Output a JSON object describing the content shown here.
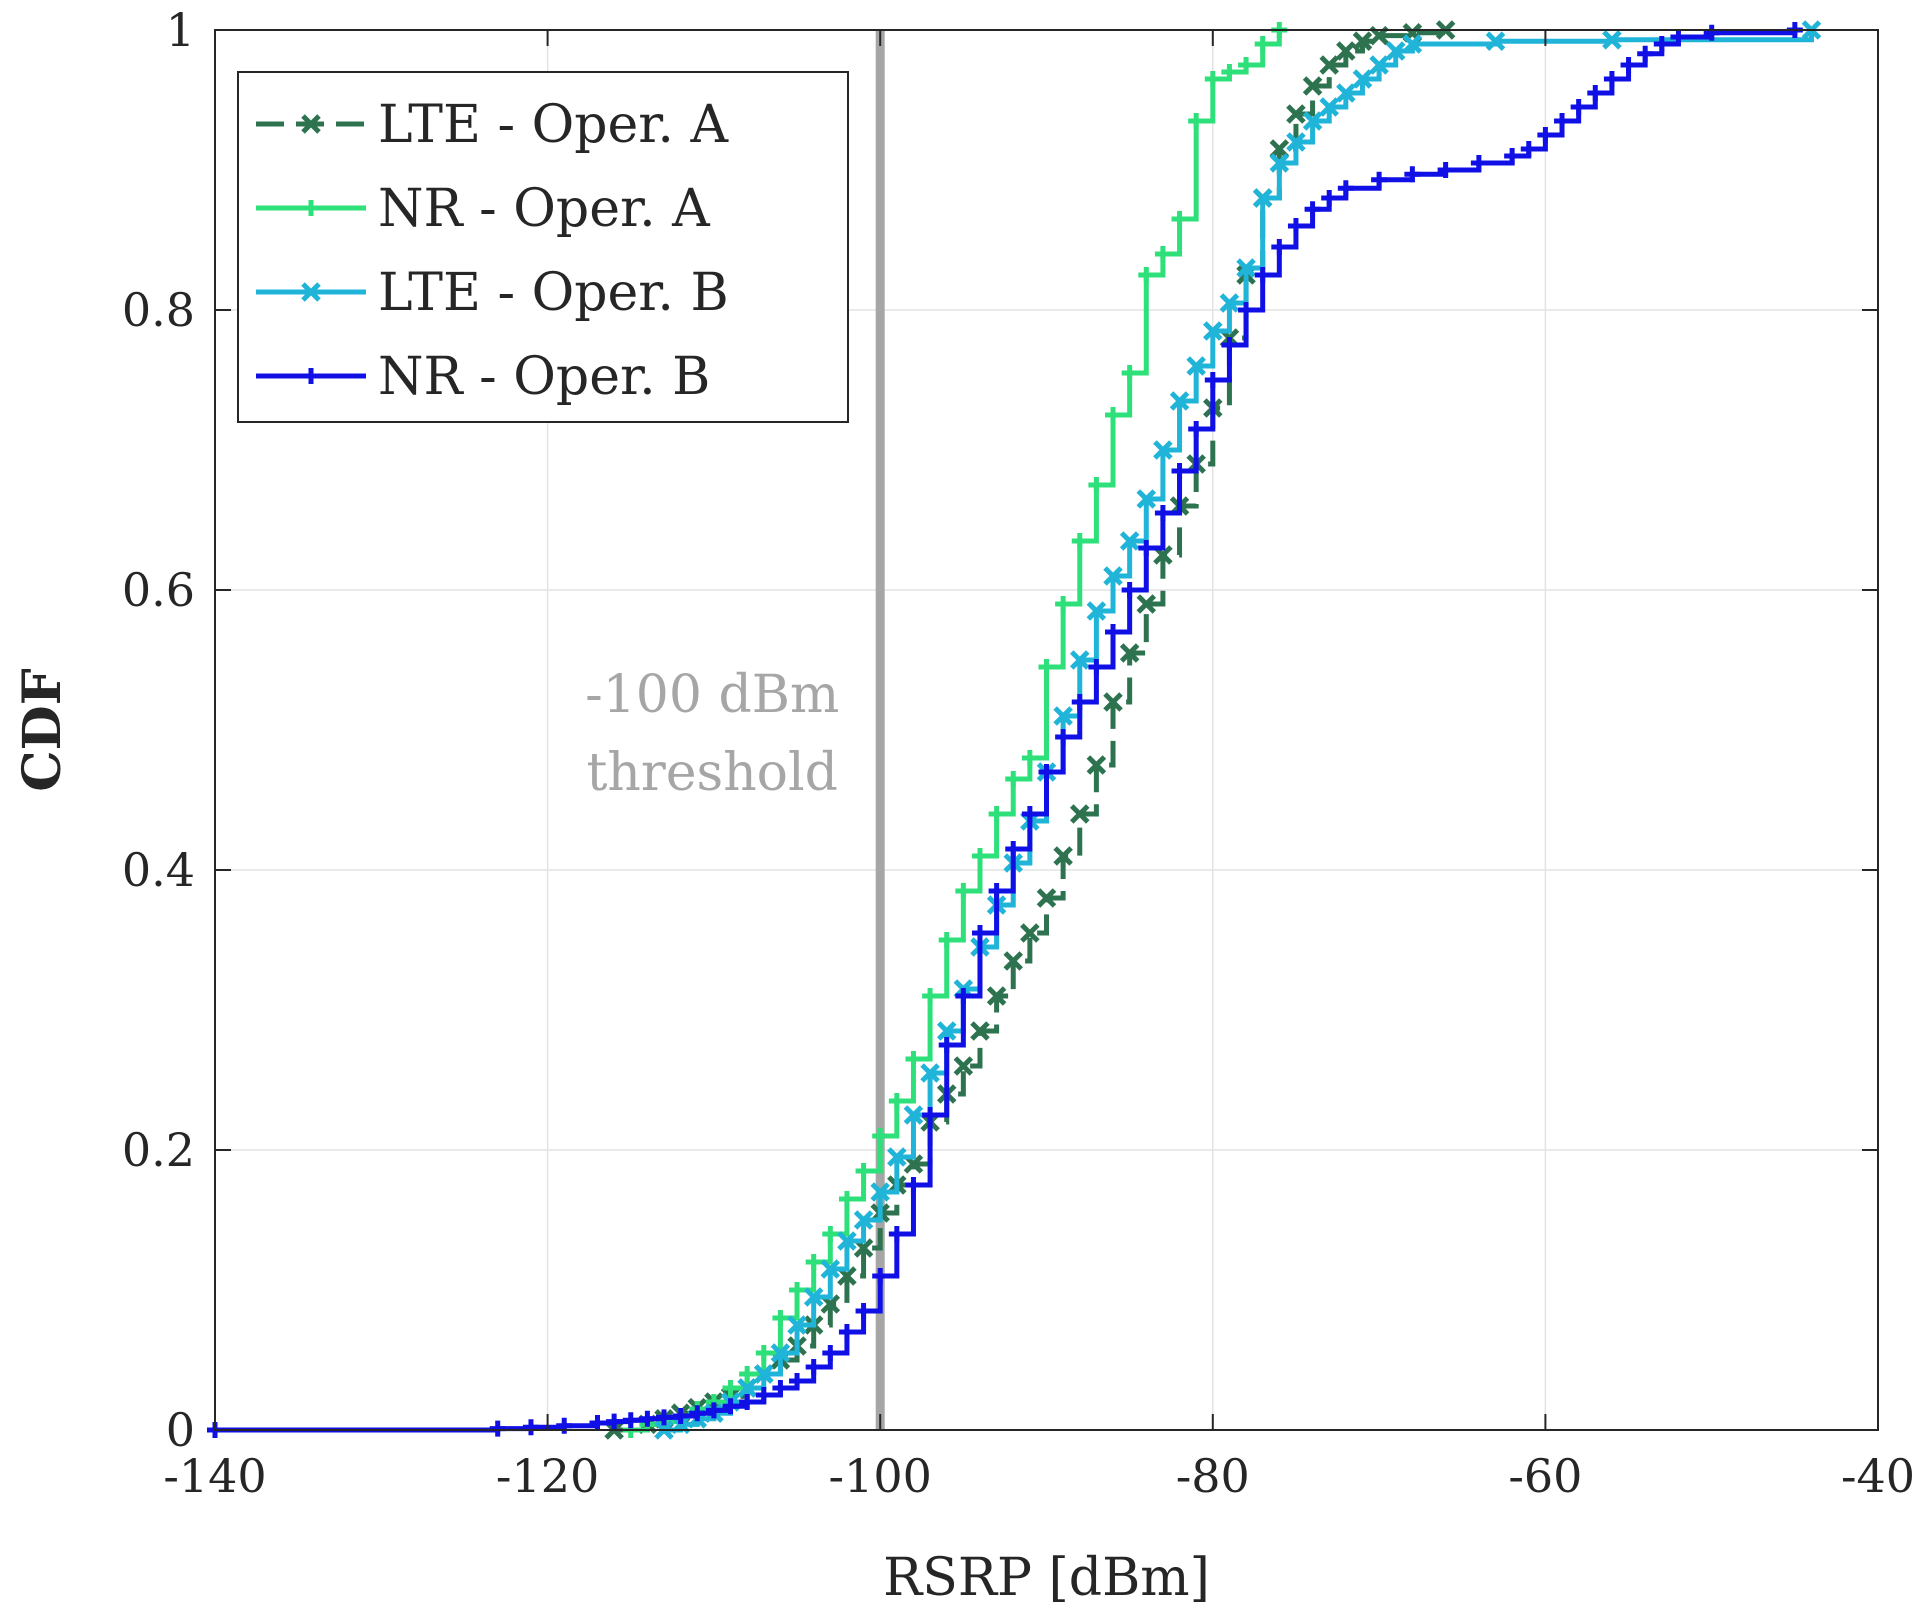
{
  "chart_data": {
    "type": "line",
    "subtype": "empirical-cdf-step",
    "xlabel": "RSRP [dBm]",
    "ylabel": "CDF",
    "xlim": [
      -140,
      -40
    ],
    "ylim": [
      0,
      1
    ],
    "xticks": [
      -140,
      -120,
      -100,
      -80,
      -60,
      -40
    ],
    "yticks": [
      0,
      0.2,
      0.4,
      0.6,
      0.8,
      1
    ],
    "xtick_labels": [
      "-140",
      "-120",
      "-100",
      "-80",
      "-60",
      "-40"
    ],
    "ytick_labels": [
      "0",
      "0.2",
      "0.4",
      "0.6",
      "0.8",
      "1"
    ],
    "grid": true,
    "legend_position": "top-left",
    "threshold": {
      "x": -100,
      "color": "#a6a6a6",
      "label_line1": "-100 dBm",
      "label_line2": "threshold"
    },
    "series": [
      {
        "name": "LTE - Oper. A",
        "color": "#2e7350",
        "dash": true,
        "marker": "x",
        "points": [
          [
            -116,
            0.0
          ],
          [
            -114,
            0.004
          ],
          [
            -113,
            0.008
          ],
          [
            -112,
            0.012
          ],
          [
            -111,
            0.016
          ],
          [
            -110,
            0.02
          ],
          [
            -109,
            0.024
          ],
          [
            -108,
            0.03
          ],
          [
            -107,
            0.04
          ],
          [
            -106,
            0.05
          ],
          [
            -105,
            0.06
          ],
          [
            -104,
            0.075
          ],
          [
            -103,
            0.09
          ],
          [
            -102,
            0.11
          ],
          [
            -101,
            0.13
          ],
          [
            -100,
            0.155
          ],
          [
            -99,
            0.175
          ],
          [
            -98,
            0.19
          ],
          [
            -97,
            0.22
          ],
          [
            -96,
            0.24
          ],
          [
            -95,
            0.26
          ],
          [
            -94,
            0.285
          ],
          [
            -93,
            0.31
          ],
          [
            -92,
            0.335
          ],
          [
            -91,
            0.355
          ],
          [
            -90,
            0.38
          ],
          [
            -89,
            0.41
          ],
          [
            -88,
            0.44
          ],
          [
            -87,
            0.475
          ],
          [
            -86,
            0.52
          ],
          [
            -85,
            0.555
          ],
          [
            -84,
            0.59
          ],
          [
            -83,
            0.625
          ],
          [
            -82,
            0.66
          ],
          [
            -81,
            0.69
          ],
          [
            -80,
            0.73
          ],
          [
            -79,
            0.78
          ],
          [
            -78,
            0.825
          ],
          [
            -77,
            0.88
          ],
          [
            -76,
            0.915
          ],
          [
            -75,
            0.94
          ],
          [
            -74,
            0.96
          ],
          [
            -73,
            0.975
          ],
          [
            -72,
            0.985
          ],
          [
            -71,
            0.992
          ],
          [
            -70,
            0.996
          ],
          [
            -68,
            0.998
          ],
          [
            -66,
            1.0
          ]
        ]
      },
      {
        "name": "NR - Oper. A",
        "color": "#2ee07a",
        "dash": false,
        "marker": "+",
        "points": [
          [
            -115,
            0.0
          ],
          [
            -114,
            0.004
          ],
          [
            -113,
            0.006
          ],
          [
            -112,
            0.01
          ],
          [
            -111,
            0.015
          ],
          [
            -110,
            0.02
          ],
          [
            -109,
            0.03
          ],
          [
            -108,
            0.04
          ],
          [
            -107,
            0.055
          ],
          [
            -106,
            0.08
          ],
          [
            -105,
            0.1
          ],
          [
            -104,
            0.12
          ],
          [
            -103,
            0.14
          ],
          [
            -102,
            0.165
          ],
          [
            -101,
            0.185
          ],
          [
            -100,
            0.21
          ],
          [
            -99,
            0.235
          ],
          [
            -98,
            0.265
          ],
          [
            -97,
            0.31
          ],
          [
            -96,
            0.35
          ],
          [
            -95,
            0.385
          ],
          [
            -94,
            0.41
          ],
          [
            -93,
            0.44
          ],
          [
            -92,
            0.465
          ],
          [
            -91,
            0.48
          ],
          [
            -90,
            0.545
          ],
          [
            -89,
            0.59
          ],
          [
            -88,
            0.635
          ],
          [
            -87,
            0.675
          ],
          [
            -86,
            0.725
          ],
          [
            -85,
            0.755
          ],
          [
            -84,
            0.825
          ],
          [
            -83,
            0.84
          ],
          [
            -82,
            0.865
          ],
          [
            -81,
            0.935
          ],
          [
            -80,
            0.965
          ],
          [
            -79,
            0.97
          ],
          [
            -78,
            0.975
          ],
          [
            -77,
            0.99
          ],
          [
            -76,
            1.0
          ]
        ]
      },
      {
        "name": "LTE - Oper. B",
        "color": "#1fb4d8",
        "dash": false,
        "marker": "x",
        "points": [
          [
            -113,
            0.0
          ],
          [
            -112,
            0.004
          ],
          [
            -111,
            0.008
          ],
          [
            -110,
            0.012
          ],
          [
            -109,
            0.02
          ],
          [
            -108,
            0.03
          ],
          [
            -107,
            0.04
          ],
          [
            -106,
            0.055
          ],
          [
            -105,
            0.075
          ],
          [
            -104,
            0.095
          ],
          [
            -103,
            0.115
          ],
          [
            -102,
            0.135
          ],
          [
            -101,
            0.15
          ],
          [
            -100,
            0.17
          ],
          [
            -99,
            0.195
          ],
          [
            -98,
            0.225
          ],
          [
            -97,
            0.255
          ],
          [
            -96,
            0.285
          ],
          [
            -95,
            0.315
          ],
          [
            -94,
            0.345
          ],
          [
            -93,
            0.375
          ],
          [
            -92,
            0.405
          ],
          [
            -91,
            0.435
          ],
          [
            -90,
            0.47
          ],
          [
            -89,
            0.51
          ],
          [
            -88,
            0.55
          ],
          [
            -87,
            0.585
          ],
          [
            -86,
            0.61
          ],
          [
            -85,
            0.635
          ],
          [
            -84,
            0.665
          ],
          [
            -83,
            0.7
          ],
          [
            -82,
            0.735
          ],
          [
            -81,
            0.76
          ],
          [
            -80,
            0.785
          ],
          [
            -79,
            0.805
          ],
          [
            -78,
            0.83
          ],
          [
            -77,
            0.88
          ],
          [
            -76,
            0.905
          ],
          [
            -75,
            0.92
          ],
          [
            -74,
            0.935
          ],
          [
            -73,
            0.945
          ],
          [
            -72,
            0.955
          ],
          [
            -71,
            0.965
          ],
          [
            -70,
            0.975
          ],
          [
            -69,
            0.985
          ],
          [
            -68,
            0.99
          ],
          [
            -63,
            0.992
          ],
          [
            -56,
            0.993
          ],
          [
            -44,
            1.0
          ]
        ]
      },
      {
        "name": "NR - Oper. B",
        "color": "#1010e6",
        "dash": false,
        "marker": "+",
        "points": [
          [
            -140,
            0.0
          ],
          [
            -123,
            0.001
          ],
          [
            -121,
            0.002
          ],
          [
            -119,
            0.003
          ],
          [
            -117,
            0.005
          ],
          [
            -116,
            0.006
          ],
          [
            -115,
            0.007
          ],
          [
            -114,
            0.008
          ],
          [
            -113,
            0.009
          ],
          [
            -112,
            0.01
          ],
          [
            -111,
            0.012
          ],
          [
            -110,
            0.014
          ],
          [
            -109,
            0.017
          ],
          [
            -108,
            0.02
          ],
          [
            -107,
            0.025
          ],
          [
            -106,
            0.03
          ],
          [
            -105,
            0.035
          ],
          [
            -104,
            0.045
          ],
          [
            -103,
            0.055
          ],
          [
            -102,
            0.07
          ],
          [
            -101,
            0.085
          ],
          [
            -100,
            0.11
          ],
          [
            -99,
            0.14
          ],
          [
            -98,
            0.175
          ],
          [
            -97,
            0.225
          ],
          [
            -96,
            0.275
          ],
          [
            -95,
            0.31
          ],
          [
            -94,
            0.355
          ],
          [
            -93,
            0.385
          ],
          [
            -92,
            0.415
          ],
          [
            -91,
            0.44
          ],
          [
            -90,
            0.47
          ],
          [
            -89,
            0.495
          ],
          [
            -88,
            0.52
          ],
          [
            -87,
            0.545
          ],
          [
            -86,
            0.57
          ],
          [
            -85,
            0.6
          ],
          [
            -84,
            0.63
          ],
          [
            -83,
            0.655
          ],
          [
            -82,
            0.685
          ],
          [
            -81,
            0.715
          ],
          [
            -80,
            0.75
          ],
          [
            -79,
            0.775
          ],
          [
            -78,
            0.8
          ],
          [
            -77,
            0.825
          ],
          [
            -76,
            0.845
          ],
          [
            -75,
            0.86
          ],
          [
            -74,
            0.872
          ],
          [
            -73,
            0.88
          ],
          [
            -72,
            0.887
          ],
          [
            -70,
            0.893
          ],
          [
            -68,
            0.897
          ],
          [
            -66,
            0.9
          ],
          [
            -64,
            0.905
          ],
          [
            -62,
            0.91
          ],
          [
            -61,
            0.915
          ],
          [
            -60,
            0.925
          ],
          [
            -59,
            0.935
          ],
          [
            -58,
            0.945
          ],
          [
            -57,
            0.955
          ],
          [
            -56,
            0.965
          ],
          [
            -55,
            0.975
          ],
          [
            -54,
            0.983
          ],
          [
            -53,
            0.99
          ],
          [
            -52,
            0.995
          ],
          [
            -50,
            0.998
          ],
          [
            -45,
            1.0
          ]
        ]
      }
    ]
  }
}
